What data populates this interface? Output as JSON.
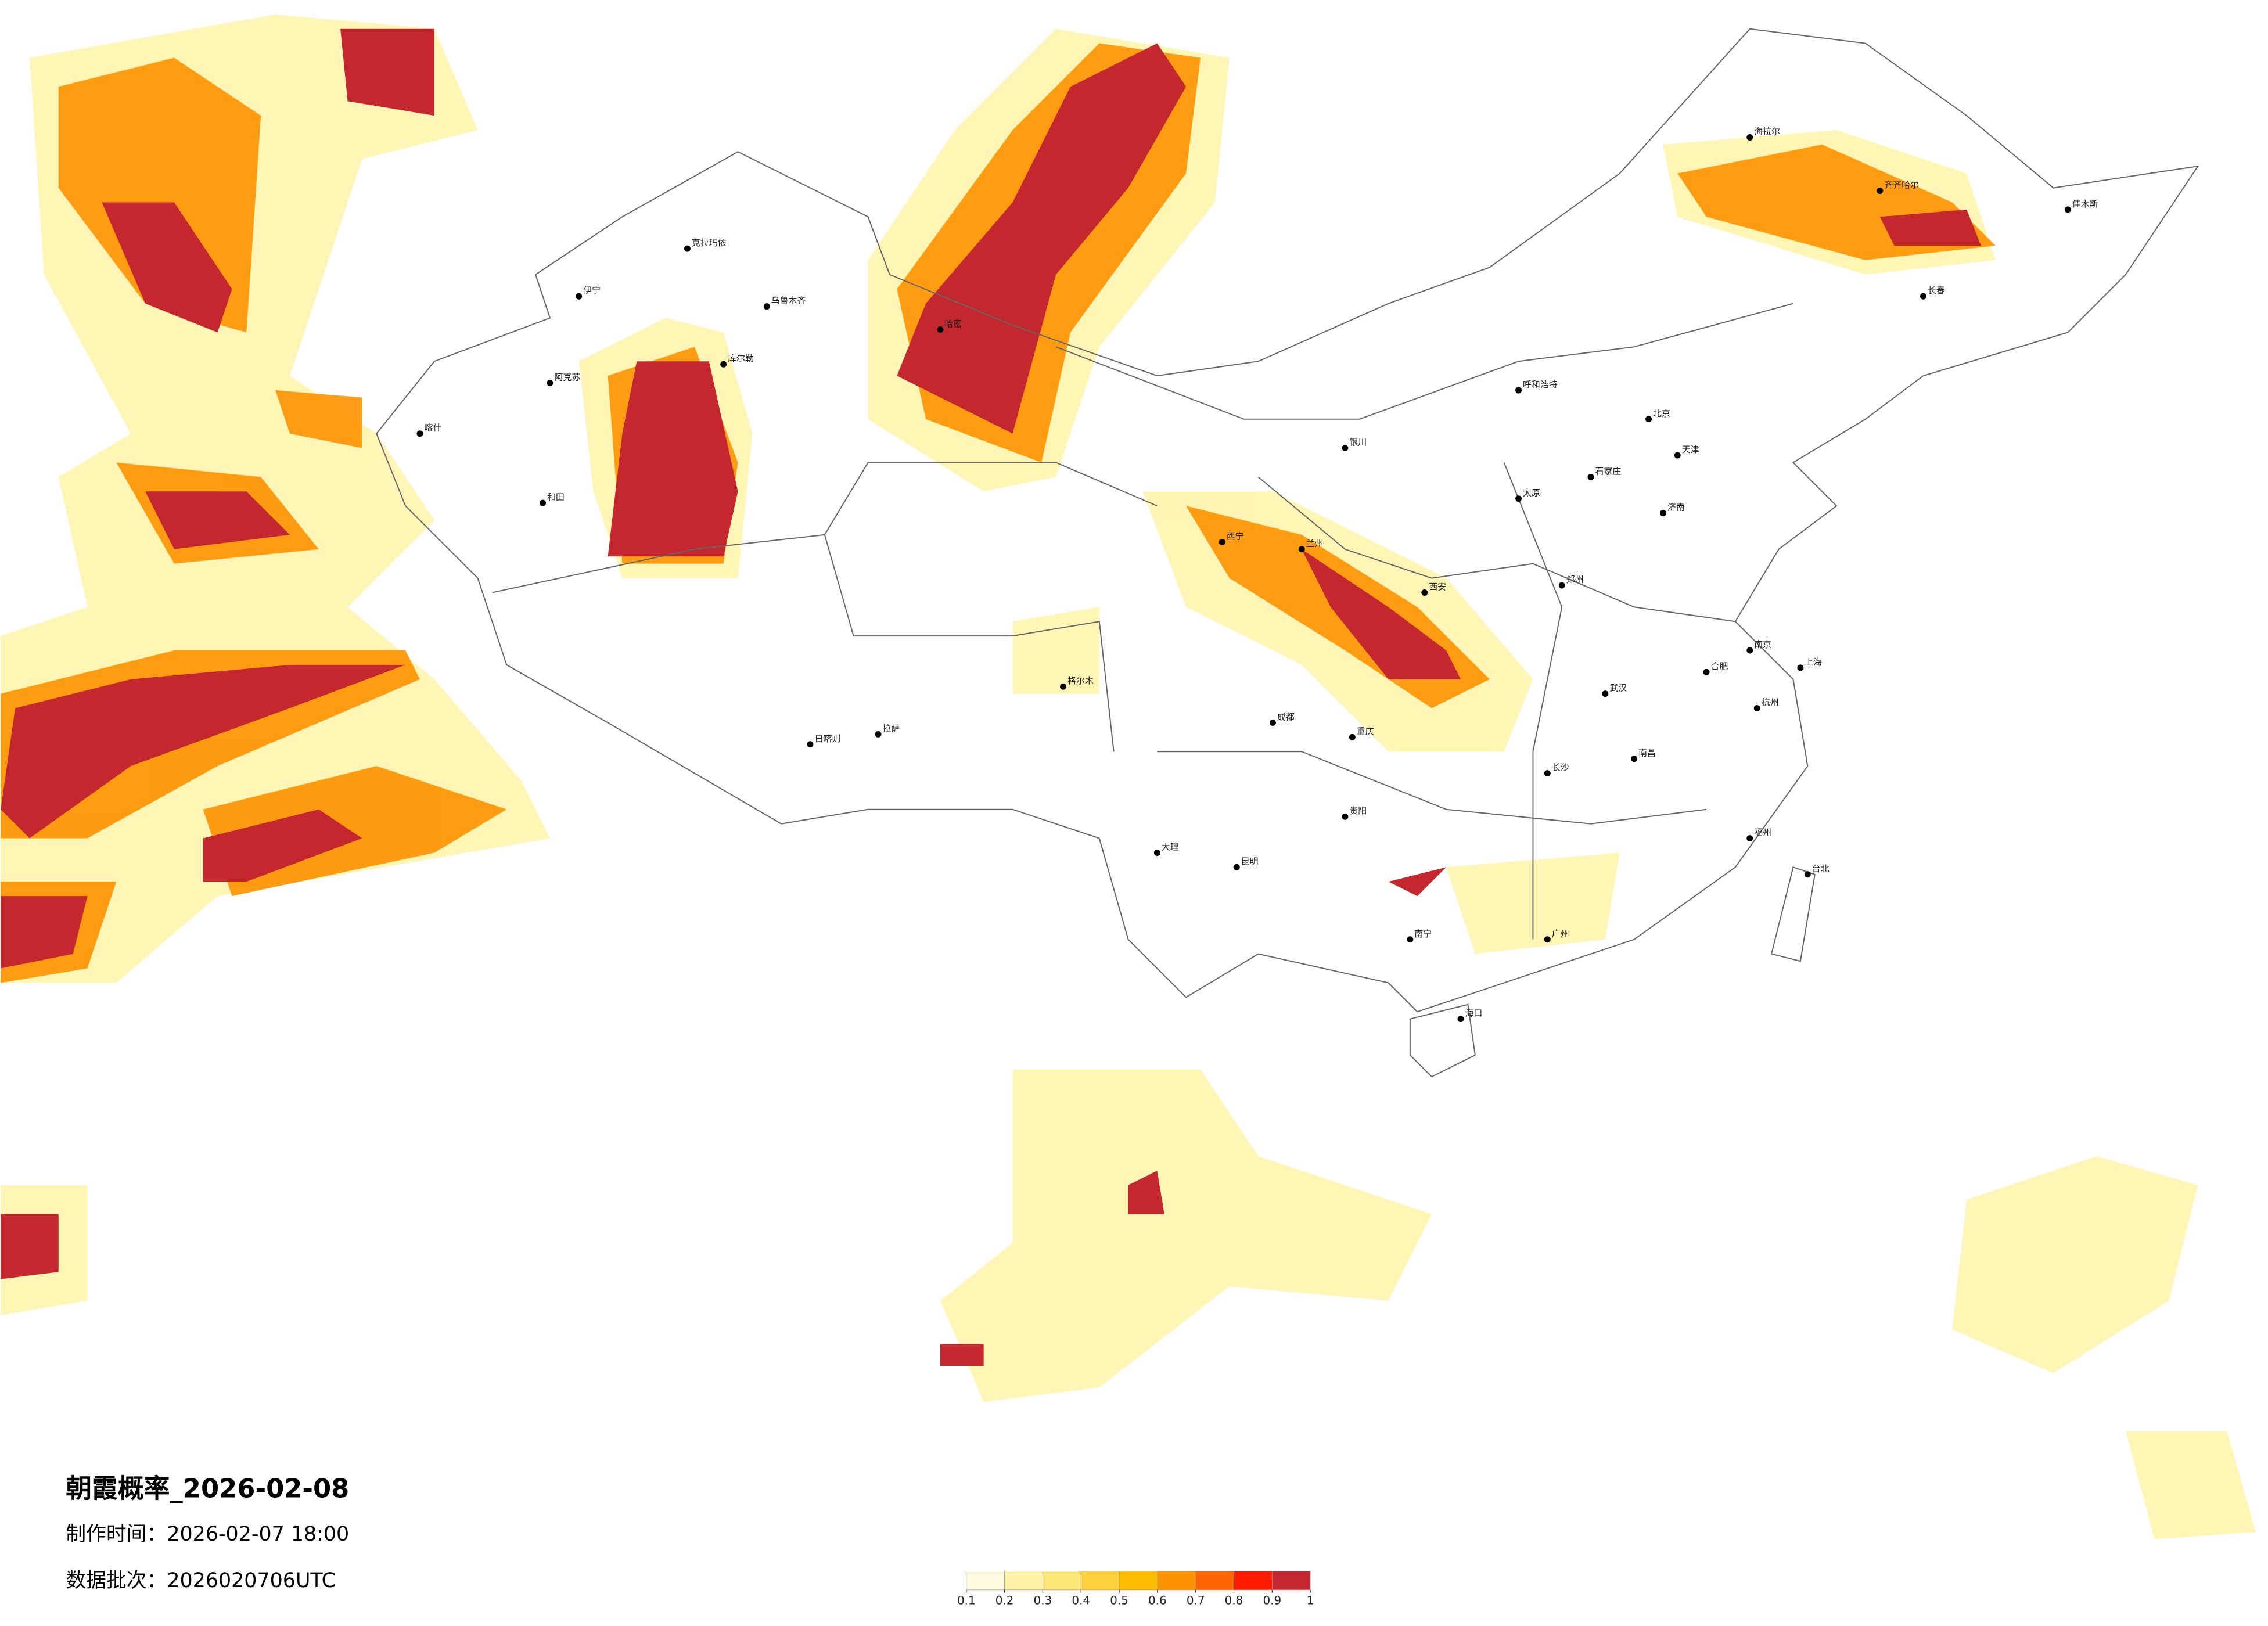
{
  "map": {
    "title": "朝霞概率_2026-02-08",
    "made_time": "制作时间：2026-02-07 18:00",
    "batch": "数据批次：2026020706UTC",
    "legend": {
      "ticks": [
        0.1,
        0.2,
        0.3,
        0.4,
        0.5,
        0.6,
        0.7,
        0.8,
        0.9,
        1
      ],
      "colors": [
        "#fffbe0",
        "#fff3a8",
        "#ffe878",
        "#ffd23c",
        "#ffbe00",
        "#ff9200",
        "#ff6400",
        "#ff1a00",
        "#c4282e"
      ]
    },
    "cities": [
      "乌鲁木齐",
      "克拉玛依",
      "伊宁",
      "阿克苏",
      "喀什",
      "和田",
      "库尔勒",
      "哈密",
      "拉萨",
      "日喀则",
      "格尔木",
      "西宁",
      "兰州",
      "银川",
      "呼和浩特",
      "北京",
      "天津",
      "石家庄",
      "太原",
      "济南",
      "郑州",
      "西安",
      "成都",
      "重庆",
      "贵阳",
      "昆明",
      "大理",
      "武汉",
      "长沙",
      "南昌",
      "合肥",
      "南京",
      "上海",
      "杭州",
      "福州",
      "广州",
      "南宁",
      "海口",
      "台北",
      "长春",
      "齐齐哈尔",
      "佳木斯",
      "海拉尔"
    ]
  }
}
